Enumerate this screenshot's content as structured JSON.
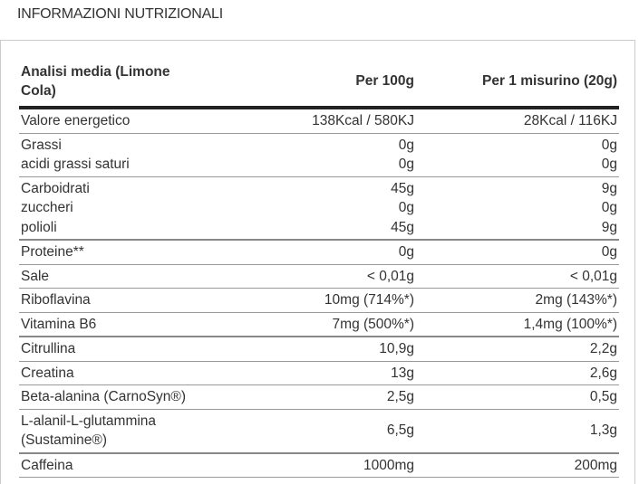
{
  "title": "INFORMAZIONI NUTRIZIONALI",
  "headers": [
    "Analisi media (Limone Cola)",
    "Per 100g",
    "Per 1 misurino (20g)"
  ],
  "rows": [
    {
      "names": [
        "Valore energetico"
      ],
      "per100": [
        "138Kcal / 580KJ"
      ],
      "perServing": [
        "28Kcal / 116KJ"
      ]
    },
    {
      "names": [
        "Grassi",
        "acidi grassi saturi"
      ],
      "per100": [
        "0g",
        "0g"
      ],
      "perServing": [
        "0g",
        "0g"
      ]
    },
    {
      "names": [
        "Carboidrati",
        "zuccheri",
        "polioli"
      ],
      "per100": [
        "45g",
        "0g",
        "45g"
      ],
      "perServing": [
        "9g",
        "0g",
        "9g"
      ],
      "thick": true
    },
    {
      "names": [
        "Proteine**"
      ],
      "per100": [
        "0g"
      ],
      "perServing": [
        "0g"
      ]
    },
    {
      "names": [
        "Sale"
      ],
      "per100": [
        "< 0,01g"
      ],
      "perServing": [
        "< 0,01g"
      ]
    },
    {
      "names": [
        "Riboflavina"
      ],
      "per100": [
        "10mg (714%*)"
      ],
      "perServing": [
        "2mg (143%*)"
      ]
    },
    {
      "names": [
        "Vitamina B6"
      ],
      "per100": [
        "7mg (500%*)"
      ],
      "perServing": [
        "1,4mg (100%*)"
      ],
      "thick": true
    },
    {
      "names": [
        "Citrullina"
      ],
      "per100": [
        "10,9g"
      ],
      "perServing": [
        "2,2g"
      ]
    },
    {
      "names": [
        "Creatina"
      ],
      "per100": [
        "13g"
      ],
      "perServing": [
        "2,6g"
      ]
    },
    {
      "names": [
        "Beta-alanina (CarnoSyn®)"
      ],
      "per100": [
        "2,5g"
      ],
      "perServing": [
        "0,5g"
      ]
    },
    {
      "names": [
        "L-alanil-L-glutammina (Sustamine®)"
      ],
      "per100": [
        "6,5g"
      ],
      "perServing": [
        "1,3g"
      ],
      "thick": true
    },
    {
      "names": [
        "Caffeina"
      ],
      "per100": [
        "1000mg"
      ],
      "perServing": [
        "200mg"
      ]
    }
  ]
}
